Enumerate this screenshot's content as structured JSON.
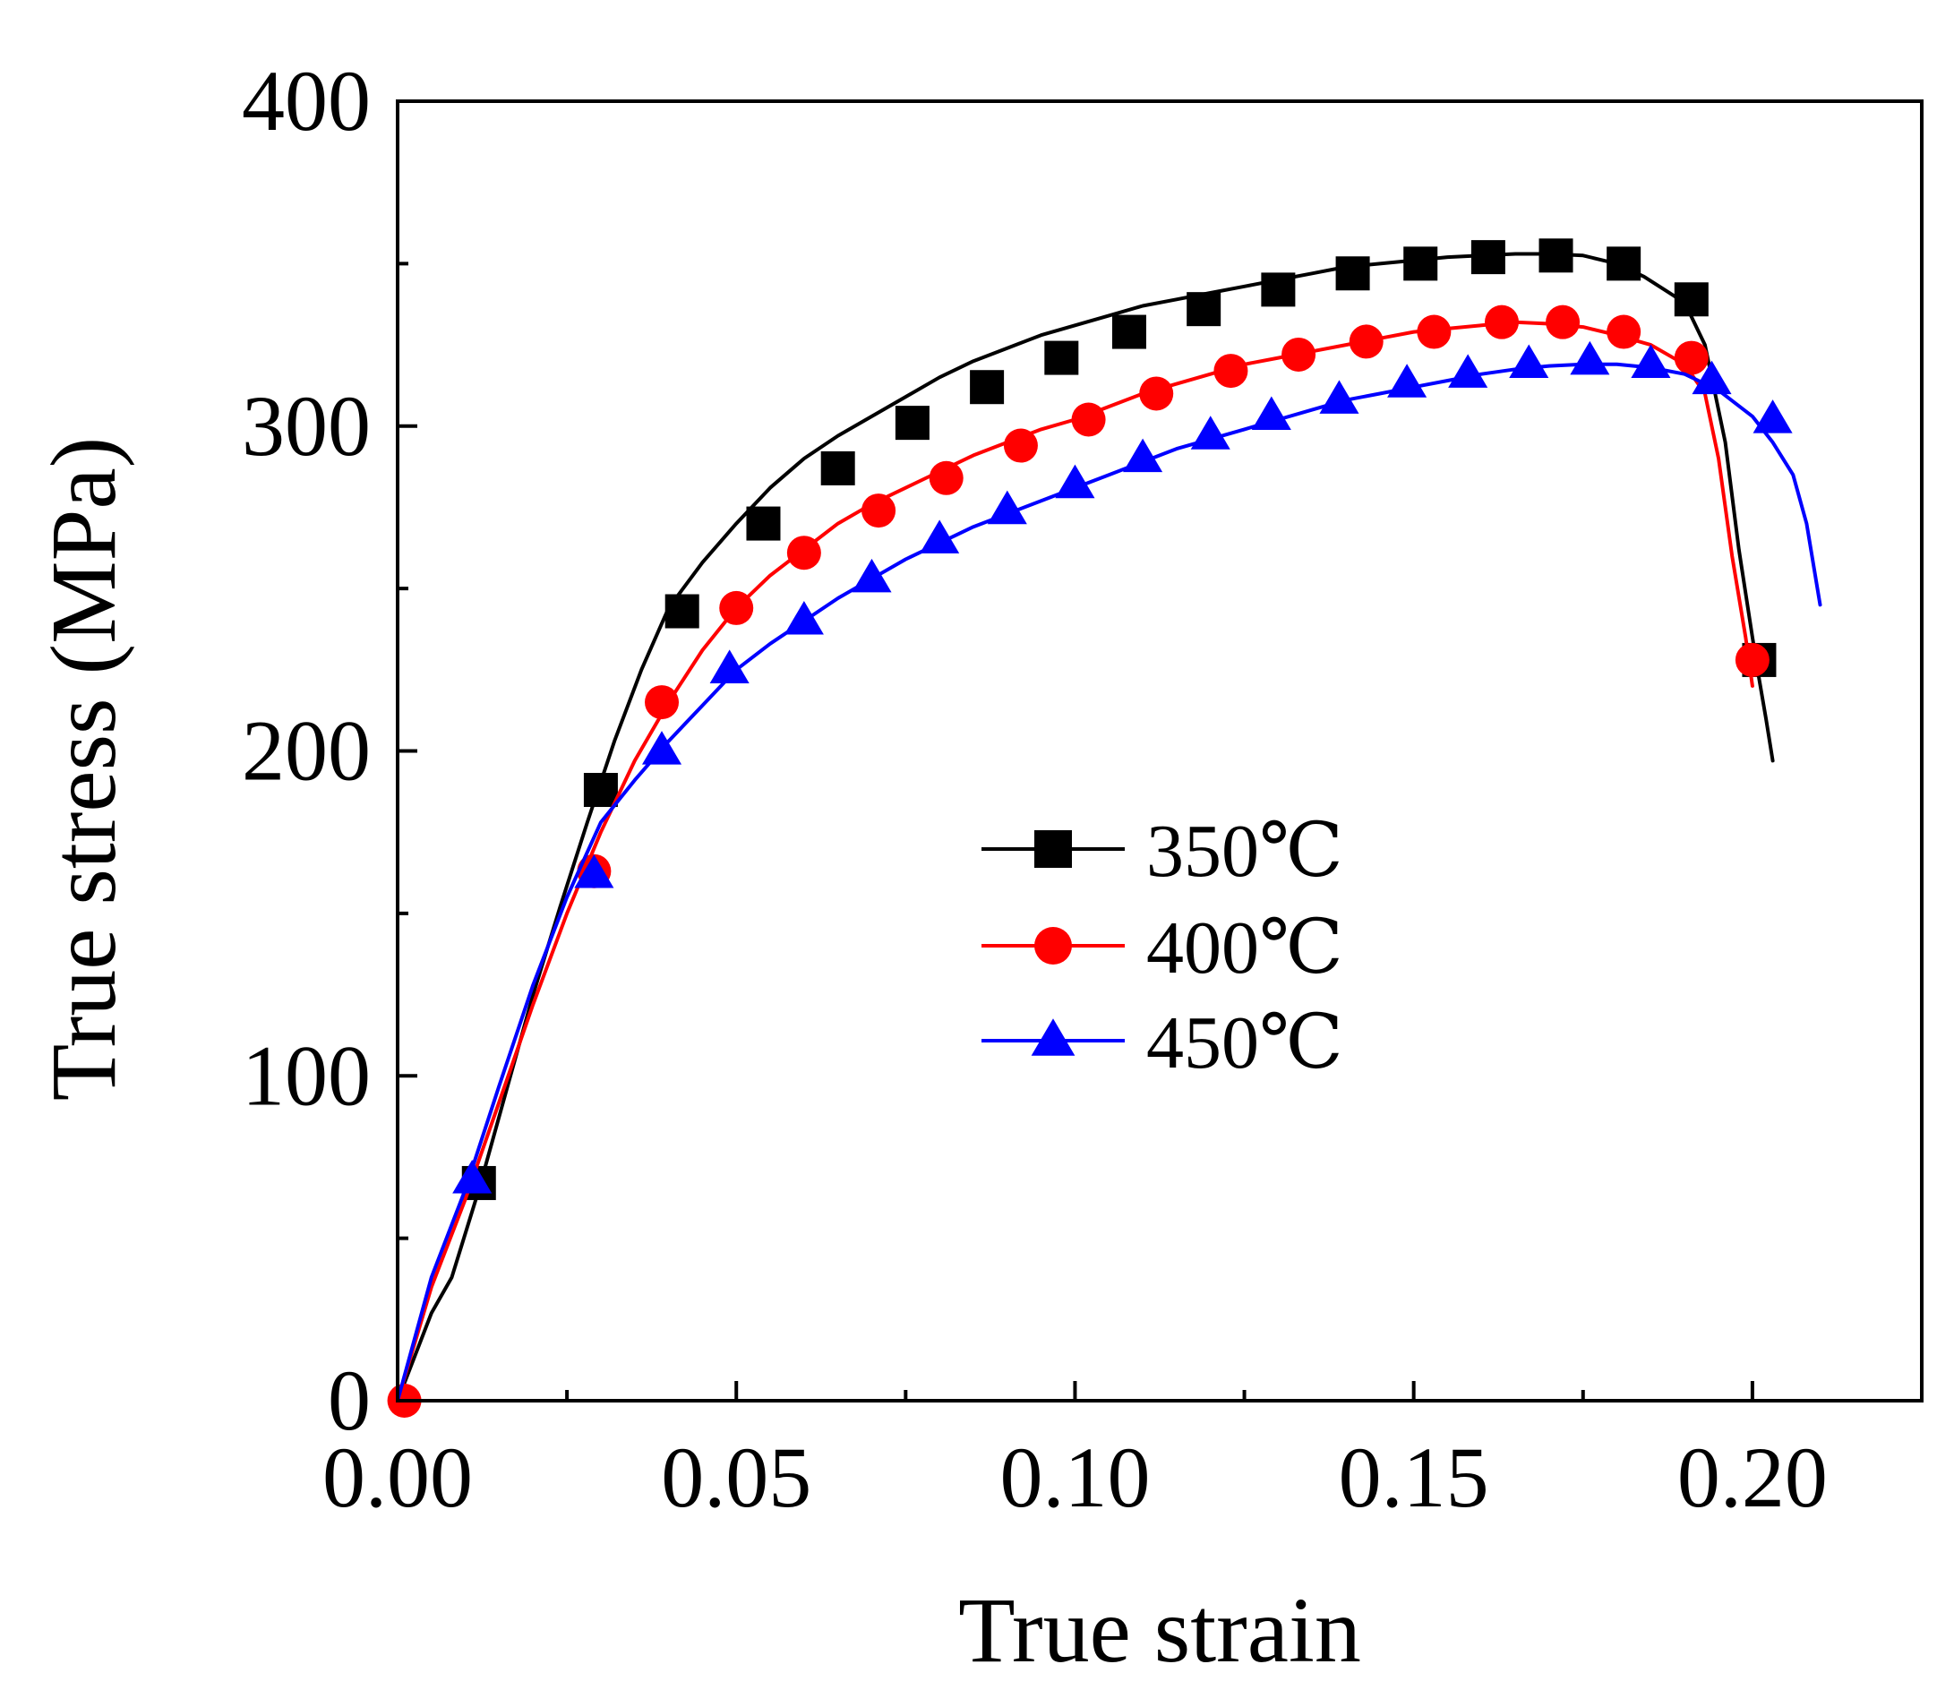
{
  "chart_data": {
    "type": "line",
    "title": "",
    "xlabel": "True strain",
    "ylabel": "True stress (MPa)",
    "xlim": [
      0.0,
      0.225
    ],
    "ylim": [
      0,
      400
    ],
    "x_ticks": [
      0.0,
      0.05,
      0.1,
      0.15,
      0.2
    ],
    "x_tick_labels": [
      "0.00",
      "0.05",
      "0.10",
      "0.15",
      "0.20"
    ],
    "x_minor_ticks": [
      0.025,
      0.075,
      0.125,
      0.175
    ],
    "y_ticks": [
      0,
      100,
      200,
      300,
      400
    ],
    "y_tick_labels": [
      "0",
      "100",
      "200",
      "300",
      "400"
    ],
    "y_minor_ticks": [
      50,
      150,
      250,
      350
    ],
    "grid": false,
    "legend_position": "center",
    "series": [
      {
        "name": "350℃",
        "color": "#000000",
        "marker": "square",
        "x": [
          0.0,
          0.005,
          0.008,
          0.012,
          0.016,
          0.02,
          0.024,
          0.028,
          0.032,
          0.036,
          0.04,
          0.045,
          0.05,
          0.055,
          0.06,
          0.065,
          0.07,
          0.075,
          0.08,
          0.085,
          0.09,
          0.095,
          0.1,
          0.105,
          0.11,
          0.115,
          0.12,
          0.125,
          0.13,
          0.135,
          0.14,
          0.145,
          0.15,
          0.155,
          0.16,
          0.165,
          0.17,
          0.175,
          0.18,
          0.184,
          0.187,
          0.19,
          0.193,
          0.196,
          0.198,
          0.2,
          0.201,
          0.202,
          0.203
        ],
        "y": [
          0,
          27,
          38,
          65,
          95,
          125,
          152,
          178,
          203,
          225,
          244,
          258,
          270,
          281,
          290,
          297,
          303,
          309,
          315,
          320,
          324,
          328,
          331,
          334,
          337,
          339,
          341,
          343,
          345,
          347,
          349,
          350,
          351,
          352,
          352.5,
          353,
          353,
          352.5,
          350,
          346,
          342,
          338,
          325,
          295,
          262,
          235,
          222,
          210,
          197
        ],
        "marker_x": [
          0.012,
          0.03,
          0.042,
          0.054,
          0.065,
          0.076,
          0.087,
          0.098,
          0.108,
          0.119,
          0.13,
          0.141,
          0.151,
          0.161,
          0.171,
          0.181,
          0.191,
          0.201
        ],
        "marker_y": [
          67,
          188,
          243,
          270,
          287,
          301,
          312,
          321,
          329,
          336,
          342,
          347,
          350,
          352,
          352.5,
          350,
          339,
          228
        ]
      },
      {
        "name": "400℃",
        "color": "#ff0000",
        "marker": "circle",
        "x": [
          0.0,
          0.005,
          0.01,
          0.015,
          0.02,
          0.025,
          0.03,
          0.035,
          0.04,
          0.045,
          0.05,
          0.055,
          0.06,
          0.065,
          0.07,
          0.075,
          0.08,
          0.085,
          0.09,
          0.095,
          0.1,
          0.105,
          0.11,
          0.115,
          0.12,
          0.125,
          0.13,
          0.135,
          0.14,
          0.145,
          0.15,
          0.155,
          0.16,
          0.165,
          0.17,
          0.175,
          0.18,
          0.185,
          0.19,
          0.193,
          0.195,
          0.197,
          0.199,
          0.2
        ],
        "y": [
          0,
          35,
          62,
          92,
          122,
          150,
          175,
          197,
          215,
          231,
          244,
          254,
          262,
          270,
          276,
          281,
          286,
          291,
          295,
          299,
          302,
          306,
          310,
          313,
          316,
          319,
          321,
          323,
          325,
          327,
          329,
          330,
          331,
          332,
          331.5,
          330.5,
          328,
          325,
          319,
          310,
          290,
          260,
          235,
          220
        ],
        "marker_x": [
          0.001,
          0.029,
          0.039,
          0.05,
          0.06,
          0.071,
          0.081,
          0.092,
          0.102,
          0.112,
          0.123,
          0.133,
          0.143,
          0.153,
          0.163,
          0.172,
          0.181,
          0.191,
          0.2
        ],
        "marker_y": [
          0,
          163,
          215,
          244,
          261,
          274,
          284,
          294,
          302,
          310,
          317,
          322,
          326,
          329,
          332,
          332,
          329,
          321,
          228
        ]
      },
      {
        "name": "450℃",
        "color": "#0000ff",
        "marker": "triangle",
        "x": [
          0.0,
          0.005,
          0.01,
          0.015,
          0.02,
          0.025,
          0.03,
          0.035,
          0.04,
          0.045,
          0.05,
          0.055,
          0.06,
          0.065,
          0.07,
          0.075,
          0.08,
          0.085,
          0.09,
          0.095,
          0.1,
          0.105,
          0.11,
          0.115,
          0.12,
          0.125,
          0.13,
          0.135,
          0.14,
          0.145,
          0.15,
          0.155,
          0.16,
          0.165,
          0.17,
          0.175,
          0.18,
          0.185,
          0.19,
          0.195,
          0.2,
          0.203,
          0.206,
          0.208,
          0.21
        ],
        "y": [
          0,
          38,
          65,
          97,
          128,
          155,
          178,
          191,
          203,
          214,
          225,
          233,
          240,
          247,
          253,
          259,
          264,
          269,
          273,
          277,
          281,
          285,
          289,
          293,
          296,
          299,
          302,
          305,
          308,
          310,
          312,
          314,
          316,
          317.5,
          318.5,
          319,
          319,
          318,
          316,
          311,
          303,
          295,
          285,
          270,
          245
        ],
        "marker_x": [
          0.011,
          0.029,
          0.039,
          0.049,
          0.06,
          0.07,
          0.08,
          0.09,
          0.1,
          0.11,
          0.12,
          0.129,
          0.139,
          0.149,
          0.158,
          0.167,
          0.176,
          0.185,
          0.194,
          0.203
        ],
        "marker_y": [
          68,
          162,
          200,
          225,
          240,
          253,
          265,
          274,
          282,
          290,
          297,
          303,
          308,
          313,
          316,
          319,
          320,
          319,
          314,
          302
        ]
      }
    ]
  }
}
